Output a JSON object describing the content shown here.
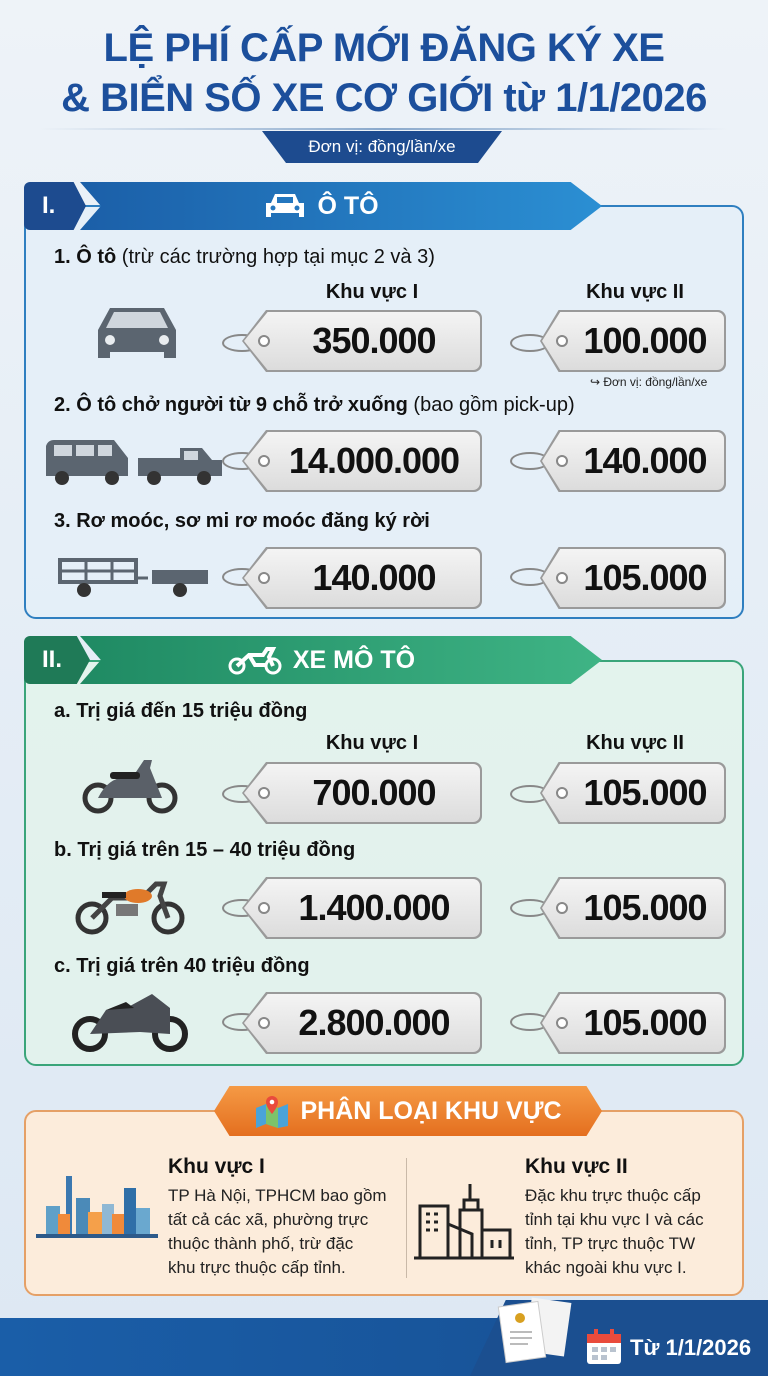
{
  "title": {
    "line1": "LỆ PHÍ CẤP MỚI ĐĂNG KÝ XE",
    "line2": "& BIỂN SỐ XE CƠ GIỚI từ 1/1/2026",
    "unit": "Đơn vị: đồng/lần/xe"
  },
  "region_labels": {
    "r1": "Khu vực I",
    "r2": "Khu vực II"
  },
  "section1": {
    "number": "I.",
    "title": "Ô TÔ",
    "icon": "car-icon",
    "color": "#2f7fc0",
    "items": [
      {
        "title_bold": "1. Ô tô",
        "title_rest": " (trừ các trường hợp tại mục 2 và 3)",
        "r1": "350.000",
        "r2": "100.000"
      },
      {
        "title_bold": "2. Ô tô chở người từ 9 chỗ trở xuống",
        "title_rest": " (bao gồm pick-up)",
        "r1": "14.000.000",
        "r2": "140.000"
      },
      {
        "title_bold": "3. Rơ moóc, sơ mi rơ moóc đăng ký rời",
        "title_rest": "",
        "r1": "140.000",
        "r2": "105.000"
      }
    ],
    "note": "Đơn vị: đồng/lần/xe"
  },
  "section2": {
    "number": "II.",
    "title": "XE MÔ TÔ",
    "icon": "motorcycle-icon",
    "color": "#3aa57a",
    "items": [
      {
        "title_bold": "a. Trị giá đến 15 triệu đồng",
        "r1": "700.000",
        "r2": "105.000"
      },
      {
        "title_bold": "b. Trị giá trên 15 – 40 triệu đồng",
        "r1": "1.400.000",
        "r2": "105.000"
      },
      {
        "title_bold": "c. Trị giá trên 40 triệu đồng",
        "r1": "2.800.000",
        "r2": "105.000"
      }
    ]
  },
  "section3": {
    "title": "PHÂN LOẠI KHU VỰC",
    "icon": "map-pin-icon",
    "color": "#e87a2a",
    "r1": {
      "heading": "Khu vực I",
      "lines": [
        "TP Hà Nội, TPHCM bao gồm",
        "tất cả các xã, phường trực",
        "thuộc thành phố, trừ đặc",
        "khu trực thuộc cấp tỉnh."
      ]
    },
    "r2": {
      "heading": "Khu vực II",
      "lines": [
        "Đặc khu trực thuộc cấp",
        "tỉnh tại khu vực I và các",
        "tỉnh, TP trực thuộc TW",
        "khác ngoài khu vực I."
      ]
    }
  },
  "footer": {
    "date": "Từ 1/1/2026"
  }
}
